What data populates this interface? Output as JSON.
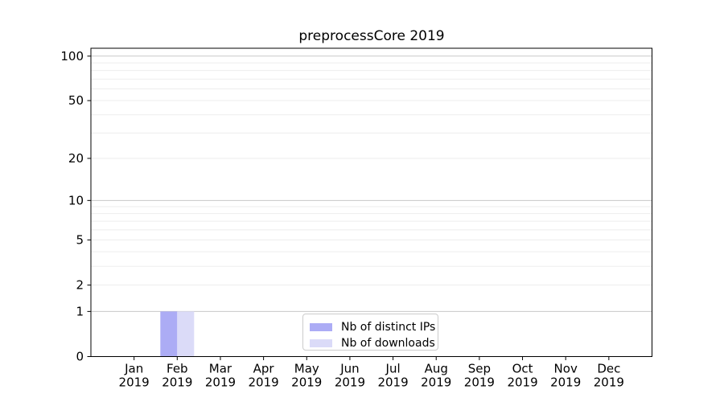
{
  "chart_data": {
    "type": "bar",
    "title": "preprocessCore 2019",
    "categories": [
      "Jan 2019",
      "Feb 2019",
      "Mar 2019",
      "Apr 2019",
      "May 2019",
      "Jun 2019",
      "Jul 2019",
      "Aug 2019",
      "Sep 2019",
      "Oct 2019",
      "Nov 2019",
      "Dec 2019"
    ],
    "series": [
      {
        "name": "Nb of distinct IPs",
        "color": "#acacf5",
        "values": [
          0,
          1,
          0,
          0,
          0,
          0,
          0,
          0,
          0,
          0,
          0,
          0
        ]
      },
      {
        "name": "Nb of downloads",
        "color": "#dbdbf8",
        "values": [
          0,
          1,
          0,
          0,
          0,
          0,
          0,
          0,
          0,
          0,
          0,
          0
        ]
      }
    ],
    "y_scale": "log1p",
    "ylim": [
      0,
      113
    ],
    "y_ticks": [
      0,
      1,
      2,
      5,
      10,
      20,
      50,
      100
    ],
    "y_major_gridlines": [
      1,
      10,
      100
    ],
    "y_minor_gridlines": [
      2,
      3,
      4,
      5,
      6,
      7,
      8,
      9,
      20,
      30,
      40,
      50,
      60,
      70,
      80,
      90
    ],
    "legend_position": "bottom-center",
    "grid": "horizontal",
    "colors": {
      "major_grid": "#c8c8c8",
      "minor_grid": "#ededed",
      "axis": "#000000",
      "text": "#000000",
      "legend_border": "#cccccc"
    }
  }
}
